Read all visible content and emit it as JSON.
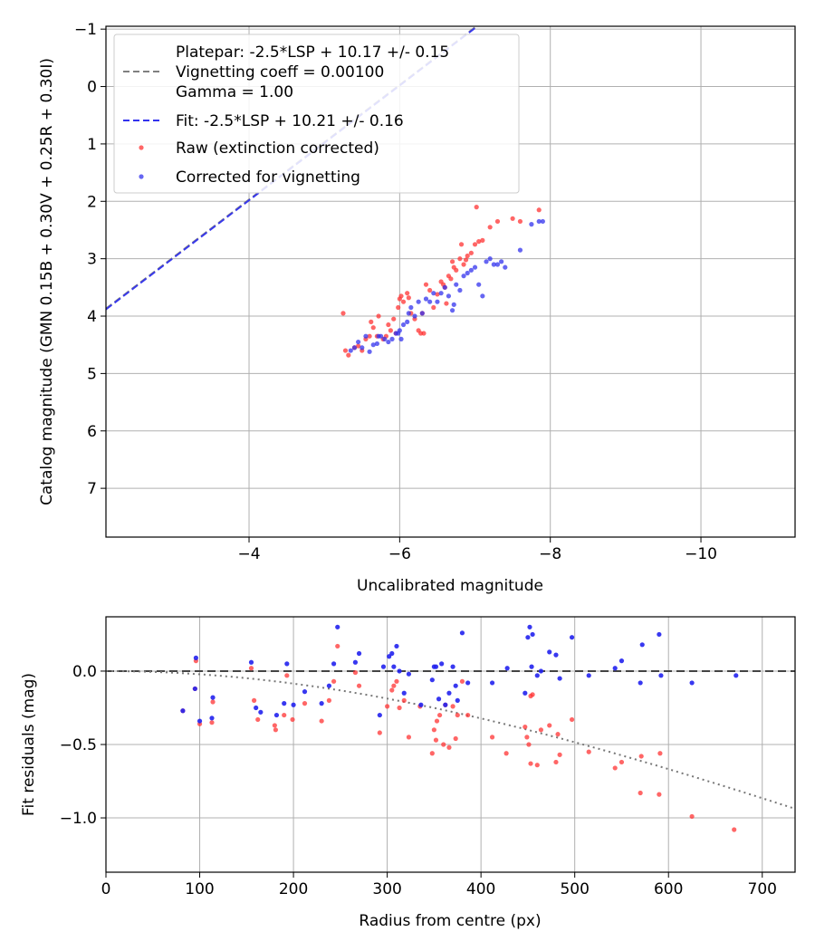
{
  "chart_data": [
    {
      "type": "scatter",
      "xlabel": "Uncalibrated magnitude",
      "ylabel": "Catalog magnitude (GMN 0.15B + 0.30V + 0.25R + 0.30I)",
      "xlim": [
        -2.1,
        -11.25
      ],
      "ylim": [
        7.85,
        -1.05
      ],
      "x_ticks": [
        -4,
        -6,
        -8,
        -10
      ],
      "x_tick_labels": [
        "−4",
        "−6",
        "−8",
        "−10"
      ],
      "y_ticks": [
        -1,
        0,
        1,
        2,
        3,
        4,
        5,
        6,
        7
      ],
      "y_tick_labels": [
        "−1",
        "0",
        "1",
        "2",
        "3",
        "4",
        "5",
        "6",
        "7"
      ],
      "grid": true,
      "legend_position": "top-left",
      "legend": [
        {
          "label": "Platepar: -2.5*LSP + 10.17 +/- 0.15",
          "style": "line-dashed",
          "color": "#808080"
        },
        {
          "label": "Vignetting coeff = 0.00100",
          "style": "none"
        },
        {
          "label": "Gamma = 1.00",
          "style": "none"
        },
        {
          "label": "Fit: -2.5*LSP + 10.21 +/- 0.16",
          "style": "line-dashed",
          "color": "#3333ee"
        },
        {
          "label": "Raw (extinction corrected)",
          "style": "dot",
          "color": "#ff3333"
        },
        {
          "label": "Corrected for vignetting",
          "style": "dot",
          "color": "#3333ee"
        }
      ],
      "lines": [
        {
          "name": "Platepar",
          "slope": -2.5,
          "intercept": 10.17,
          "color": "#808080"
        },
        {
          "name": "Fit",
          "slope": -2.5,
          "intercept": 10.21,
          "color": "#3333ee"
        }
      ],
      "series": [
        {
          "name": "Raw (extinction corrected)",
          "color": "#ff3333",
          "points": [
            [
              -5.25,
              3.95
            ],
            [
              -5.28,
              4.6
            ],
            [
              -5.32,
              4.68
            ],
            [
              -5.4,
              4.55
            ],
            [
              -5.45,
              4.52
            ],
            [
              -5.5,
              4.6
            ],
            [
              -5.55,
              4.4
            ],
            [
              -5.6,
              4.35
            ],
            [
              -5.62,
              4.1
            ],
            [
              -5.65,
              4.2
            ],
            [
              -5.7,
              4.35
            ],
            [
              -5.72,
              4.0
            ],
            [
              -5.78,
              4.4
            ],
            [
              -5.82,
              4.35
            ],
            [
              -5.85,
              4.15
            ],
            [
              -5.88,
              4.25
            ],
            [
              -5.92,
              4.05
            ],
            [
              -5.95,
              4.3
            ],
            [
              -5.98,
              3.85
            ],
            [
              -6.0,
              3.7
            ],
            [
              -6.02,
              3.65
            ],
            [
              -6.05,
              3.75
            ],
            [
              -6.1,
              3.6
            ],
            [
              -6.12,
              3.68
            ],
            [
              -6.15,
              3.95
            ],
            [
              -6.2,
              4.05
            ],
            [
              -6.25,
              4.25
            ],
            [
              -6.28,
              4.3
            ],
            [
              -6.3,
              3.95
            ],
            [
              -6.32,
              4.3
            ],
            [
              -6.35,
              3.45
            ],
            [
              -6.4,
              3.55
            ],
            [
              -6.45,
              3.85
            ],
            [
              -6.5,
              3.62
            ],
            [
              -6.55,
              3.4
            ],
            [
              -6.58,
              3.45
            ],
            [
              -6.6,
              3.5
            ],
            [
              -6.62,
              3.78
            ],
            [
              -6.65,
              3.3
            ],
            [
              -6.68,
              3.35
            ],
            [
              -6.7,
              3.05
            ],
            [
              -6.72,
              3.15
            ],
            [
              -6.75,
              3.2
            ],
            [
              -6.8,
              3.0
            ],
            [
              -6.82,
              2.75
            ],
            [
              -6.85,
              3.1
            ],
            [
              -6.88,
              3.02
            ],
            [
              -6.9,
              2.95
            ],
            [
              -6.95,
              2.9
            ],
            [
              -7.0,
              2.75
            ],
            [
              -7.02,
              2.1
            ],
            [
              -7.05,
              2.7
            ],
            [
              -7.1,
              2.68
            ],
            [
              -7.2,
              2.45
            ],
            [
              -7.3,
              2.35
            ],
            [
              -7.5,
              2.3
            ],
            [
              -7.6,
              2.35
            ],
            [
              -7.85,
              2.15
            ]
          ]
        },
        {
          "name": "Corrected for vignetting",
          "color": "#3333ee",
          "points": [
            [
              -5.35,
              4.6
            ],
            [
              -5.4,
              4.55
            ],
            [
              -5.45,
              4.45
            ],
            [
              -5.5,
              4.55
            ],
            [
              -5.55,
              4.35
            ],
            [
              -5.6,
              4.62
            ],
            [
              -5.65,
              4.5
            ],
            [
              -5.7,
              4.48
            ],
            [
              -5.72,
              4.35
            ],
            [
              -5.75,
              4.35
            ],
            [
              -5.8,
              4.4
            ],
            [
              -5.85,
              4.45
            ],
            [
              -5.9,
              4.4
            ],
            [
              -5.95,
              4.3
            ],
            [
              -5.98,
              4.3
            ],
            [
              -6.0,
              4.25
            ],
            [
              -6.02,
              4.4
            ],
            [
              -6.05,
              4.15
            ],
            [
              -6.1,
              4.1
            ],
            [
              -6.12,
              3.95
            ],
            [
              -6.15,
              3.85
            ],
            [
              -6.2,
              4.0
            ],
            [
              -6.25,
              3.75
            ],
            [
              -6.3,
              3.95
            ],
            [
              -6.35,
              3.7
            ],
            [
              -6.4,
              3.75
            ],
            [
              -6.45,
              3.6
            ],
            [
              -6.5,
              3.75
            ],
            [
              -6.55,
              3.6
            ],
            [
              -6.6,
              3.5
            ],
            [
              -6.65,
              3.65
            ],
            [
              -6.7,
              3.9
            ],
            [
              -6.72,
              3.8
            ],
            [
              -6.75,
              3.45
            ],
            [
              -6.8,
              3.55
            ],
            [
              -6.85,
              3.3
            ],
            [
              -6.9,
              3.25
            ],
            [
              -6.95,
              3.2
            ],
            [
              -7.0,
              3.15
            ],
            [
              -7.05,
              3.45
            ],
            [
              -7.1,
              3.65
            ],
            [
              -7.15,
              3.05
            ],
            [
              -7.2,
              3.0
            ],
            [
              -7.25,
              3.1
            ],
            [
              -7.3,
              3.1
            ],
            [
              -7.35,
              3.05
            ],
            [
              -7.4,
              3.15
            ],
            [
              -7.6,
              2.85
            ],
            [
              -7.75,
              2.4
            ],
            [
              -7.85,
              2.35
            ],
            [
              -7.9,
              2.35
            ]
          ]
        }
      ]
    },
    {
      "type": "scatter",
      "xlabel": "Radius from centre (px)",
      "ylabel": "Fit residuals (mag)",
      "xlim": [
        0,
        735
      ],
      "ylim": [
        -1.37,
        0.37
      ],
      "x_ticks": [
        0,
        100,
        200,
        300,
        400,
        500,
        600,
        700
      ],
      "x_tick_labels": [
        "0",
        "100",
        "200",
        "300",
        "400",
        "500",
        "600",
        "700"
      ],
      "y_ticks": [
        0.0,
        -0.5,
        -1.0
      ],
      "y_tick_labels": [
        "0.0",
        "−0.5",
        "−1.0"
      ],
      "grid": true,
      "reference_lines": [
        {
          "name": "zero",
          "y": 0.0,
          "style": "dashed",
          "color": "#444444"
        },
        {
          "name": "vignetting model",
          "coefficient": 0.001,
          "style": "dotted",
          "color": "#777777"
        }
      ],
      "series": [
        {
          "name": "Raw",
          "color": "#ff3333",
          "points": [
            [
              82,
              -0.27
            ],
            [
              95,
              -0.12
            ],
            [
              96,
              0.07
            ],
            [
              100,
              -0.36
            ],
            [
              113,
              -0.35
            ],
            [
              114,
              -0.21
            ],
            [
              155,
              0.02
            ],
            [
              158,
              -0.2
            ],
            [
              162,
              -0.33
            ],
            [
              180,
              -0.37
            ],
            [
              181,
              -0.4
            ],
            [
              190,
              -0.3
            ],
            [
              193,
              -0.03
            ],
            [
              199,
              -0.33
            ],
            [
              212,
              -0.22
            ],
            [
              230,
              -0.34
            ],
            [
              238,
              -0.2
            ],
            [
              243,
              -0.07
            ],
            [
              247,
              0.17
            ],
            [
              266,
              -0.01
            ],
            [
              270,
              -0.1
            ],
            [
              292,
              -0.42
            ],
            [
              300,
              -0.24
            ],
            [
              305,
              -0.13
            ],
            [
              307,
              -0.1
            ],
            [
              310,
              -0.07
            ],
            [
              313,
              -0.25
            ],
            [
              318,
              -0.2
            ],
            [
              323,
              -0.45
            ],
            [
              335,
              -0.24
            ],
            [
              348,
              -0.56
            ],
            [
              350,
              -0.4
            ],
            [
              352,
              -0.47
            ],
            [
              353,
              -0.34
            ],
            [
              356,
              -0.3
            ],
            [
              360,
              -0.5
            ],
            [
              362,
              -0.23
            ],
            [
              366,
              -0.52
            ],
            [
              370,
              -0.24
            ],
            [
              373,
              -0.46
            ],
            [
              375,
              -0.3
            ],
            [
              380,
              -0.07
            ],
            [
              386,
              -0.3
            ],
            [
              412,
              -0.45
            ],
            [
              427,
              -0.56
            ],
            [
              447,
              -0.38
            ],
            [
              449,
              -0.45
            ],
            [
              451,
              -0.5
            ],
            [
              453,
              -0.63
            ],
            [
              453,
              -0.17
            ],
            [
              455,
              -0.16
            ],
            [
              460,
              -0.64
            ],
            [
              464,
              -0.4
            ],
            [
              473,
              -0.37
            ],
            [
              480,
              -0.62
            ],
            [
              482,
              -0.43
            ],
            [
              484,
              -0.57
            ],
            [
              497,
              -0.33
            ],
            [
              515,
              -0.55
            ],
            [
              543,
              -0.66
            ],
            [
              550,
              -0.62
            ],
            [
              570,
              -0.83
            ],
            [
              571,
              -0.58
            ],
            [
              590,
              -0.84
            ],
            [
              591,
              -0.56
            ],
            [
              625,
              -0.99
            ],
            [
              670,
              -1.08
            ]
          ]
        },
        {
          "name": "Corrected",
          "color": "#2222ee",
          "points": [
            [
              82,
              -0.27
            ],
            [
              95,
              -0.12
            ],
            [
              96,
              0.09
            ],
            [
              100,
              -0.34
            ],
            [
              113,
              -0.32
            ],
            [
              114,
              -0.18
            ],
            [
              155,
              0.06
            ],
            [
              160,
              -0.25
            ],
            [
              165,
              -0.28
            ],
            [
              182,
              -0.3
            ],
            [
              190,
              -0.22
            ],
            [
              193,
              0.05
            ],
            [
              200,
              -0.23
            ],
            [
              212,
              -0.14
            ],
            [
              230,
              -0.22
            ],
            [
              238,
              -0.1
            ],
            [
              243,
              0.05
            ],
            [
              247,
              0.3
            ],
            [
              266,
              0.06
            ],
            [
              270,
              0.12
            ],
            [
              292,
              -0.3
            ],
            [
              296,
              0.03
            ],
            [
              302,
              0.1
            ],
            [
              305,
              0.12
            ],
            [
              307,
              0.03
            ],
            [
              310,
              0.17
            ],
            [
              313,
              0.0
            ],
            [
              318,
              -0.15
            ],
            [
              323,
              -0.02
            ],
            [
              336,
              -0.23
            ],
            [
              348,
              -0.06
            ],
            [
              350,
              0.03
            ],
            [
              352,
              0.03
            ],
            [
              355,
              -0.19
            ],
            [
              358,
              0.05
            ],
            [
              362,
              -0.23
            ],
            [
              366,
              -0.15
            ],
            [
              370,
              0.03
            ],
            [
              373,
              -0.1
            ],
            [
              375,
              -0.2
            ],
            [
              380,
              0.26
            ],
            [
              386,
              -0.08
            ],
            [
              412,
              -0.08
            ],
            [
              428,
              0.02
            ],
            [
              447,
              -0.15
            ],
            [
              450,
              0.23
            ],
            [
              452,
              0.3
            ],
            [
              454,
              0.03
            ],
            [
              455,
              0.25
            ],
            [
              460,
              -0.03
            ],
            [
              464,
              0.0
            ],
            [
              473,
              0.13
            ],
            [
              480,
              0.11
            ],
            [
              484,
              -0.05
            ],
            [
              497,
              0.23
            ],
            [
              515,
              -0.03
            ],
            [
              543,
              0.02
            ],
            [
              550,
              0.07
            ],
            [
              570,
              -0.08
            ],
            [
              572,
              0.18
            ],
            [
              590,
              0.25
            ],
            [
              592,
              -0.03
            ],
            [
              625,
              -0.08
            ],
            [
              672,
              -0.03
            ]
          ]
        }
      ]
    }
  ]
}
